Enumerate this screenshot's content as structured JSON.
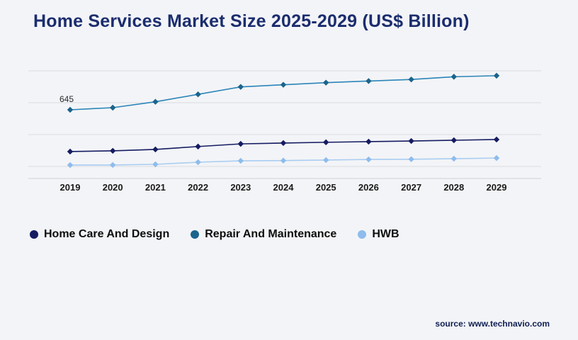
{
  "source_text": "source: www.technavio.com",
  "chart_data": {
    "type": "line",
    "title": "Home Services Market Size 2025-2029 (US$ Billion)",
    "xlabel": "",
    "ylabel": "US$ Billion",
    "ylim": [
      0,
      1080
    ],
    "grid": "horizontal",
    "legend_position": "bottom",
    "categories": [
      "2019",
      "2020",
      "2021",
      "2022",
      "2023",
      "2024",
      "2025",
      "2026",
      "2027",
      "2028",
      "2029"
    ],
    "series": [
      {
        "name": "Home Care And Design",
        "line_color": "#151c62",
        "marker_color": "#151c62",
        "values": [
          253,
          260,
          273,
          300,
          325,
          333,
          340,
          346,
          352,
          359,
          366
        ]
      },
      {
        "name": "Repair And Maintenance",
        "line_color": "#2b85b8",
        "marker_color": "#1a648c",
        "values": [
          645,
          665,
          720,
          790,
          860,
          880,
          900,
          915,
          930,
          955,
          965
        ]
      },
      {
        "name": "HWB",
        "line_color": "#a9cdf2",
        "marker_color": "#8ebcec",
        "values": [
          126,
          127,
          133,
          153,
          166,
          168,
          173,
          179,
          181,
          186,
          192
        ]
      }
    ],
    "annotations": [
      {
        "series": "Repair And Maintenance",
        "x": "2019",
        "text": "645"
      }
    ]
  }
}
